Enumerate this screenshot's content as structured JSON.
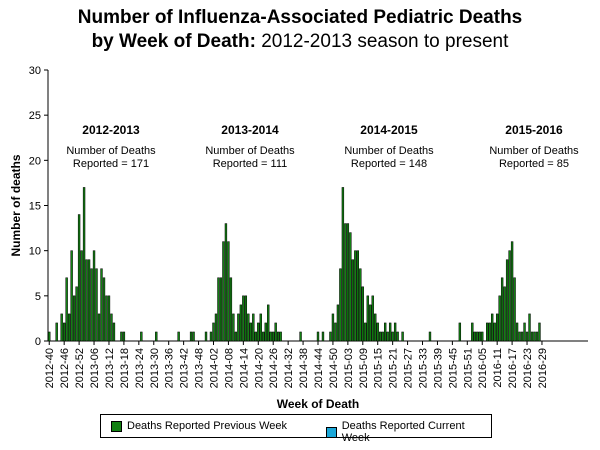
{
  "title": {
    "line1": "Number of Influenza-Associated Pediatric Deaths",
    "line2_bold": "by Week of Death:",
    "line2_rest": " 2012-2013 season to present"
  },
  "legend": {
    "previous": "Deaths Reported Previous Week",
    "current": "Deaths Reported Current Week"
  },
  "colors": {
    "previous": "#128012",
    "current": "#1aa7d8",
    "axis": "#000000"
  },
  "chart_data": {
    "type": "bar",
    "xlabel": "Week of Death",
    "ylabel": "Number of deaths",
    "ylim": [
      0,
      30
    ],
    "yticks": [
      0,
      5,
      10,
      15,
      20,
      25,
      30
    ],
    "x_tick_labels": [
      "2012-40",
      "2012-46",
      "2012-52",
      "2013-06",
      "2013-12",
      "2013-18",
      "2013-24",
      "2013-30",
      "2013-36",
      "2013-42",
      "2013-48",
      "2014-02",
      "2014-08",
      "2014-14",
      "2014-20",
      "2014-26",
      "2014-32",
      "2014-38",
      "2014-44",
      "2014-50",
      "2015-03",
      "2015-09",
      "2015-15",
      "2015-21",
      "2015-27",
      "2015-33",
      "2015-39",
      "2015-45",
      "2015-51",
      "2016-05",
      "2016-11",
      "2016-17",
      "2016-23",
      "2016-29"
    ],
    "grid": false,
    "legend_position": "bottom",
    "seasons": [
      {
        "name": "2012-2013",
        "line1": "Number of Deaths",
        "line2": "Reported = 171"
      },
      {
        "name": "2013-2014",
        "line1": "Number of Deaths",
        "line2": "Reported = 111"
      },
      {
        "name": "2014-2015",
        "line1": "Number of Deaths",
        "line2": "Reported = 148"
      },
      {
        "name": "2015-2016",
        "line1": "Number of Deaths",
        "line2": "Reported = 85"
      }
    ],
    "series": [
      {
        "name": "Deaths Reported Previous Week",
        "values": [
          1,
          0,
          0,
          2,
          0,
          3,
          2,
          7,
          3,
          10,
          5,
          6,
          14,
          10,
          17,
          9,
          9,
          8,
          10,
          8,
          3,
          8,
          7,
          5,
          5,
          3,
          2,
          0,
          0,
          1,
          1,
          0,
          0,
          0,
          0,
          0,
          0,
          1,
          0,
          0,
          0,
          0,
          0,
          1,
          0,
          0,
          0,
          0,
          0,
          0,
          0,
          0,
          1,
          0,
          0,
          0,
          0,
          1,
          1,
          0,
          0,
          0,
          0,
          1,
          0,
          1,
          2,
          3,
          7,
          7,
          11,
          13,
          11,
          7,
          3,
          1,
          3,
          4,
          5,
          5,
          3,
          2,
          3,
          1,
          2,
          3,
          1,
          2,
          4,
          1,
          1,
          2,
          1,
          1,
          0,
          0,
          0,
          0,
          0,
          0,
          0,
          1,
          0,
          0,
          0,
          0,
          0,
          0,
          1,
          0,
          1,
          0,
          0,
          1,
          3,
          2,
          4,
          8,
          17,
          13,
          13,
          12,
          9,
          10,
          10,
          8,
          6,
          2,
          5,
          4,
          5,
          3,
          2,
          1,
          1,
          2,
          1,
          2,
          1,
          2,
          1,
          0,
          1,
          0,
          0,
          0,
          0,
          0,
          0,
          0,
          0,
          0,
          0,
          1,
          0,
          0,
          0,
          0,
          0,
          0,
          0,
          0,
          0,
          0,
          0,
          2,
          0,
          0,
          0,
          0,
          2,
          1,
          1,
          1,
          1,
          0,
          2,
          2,
          3,
          2,
          3,
          5,
          7,
          6,
          9,
          10,
          11,
          7,
          2,
          1,
          1,
          2,
          1,
          3,
          1,
          1,
          1,
          2,
          0,
          0,
          0,
          0,
          0,
          0,
          0,
          0,
          0,
          0,
          0,
          0,
          0,
          0,
          0,
          0,
          0,
          0,
          0
        ]
      },
      {
        "name": "Deaths Reported Current Week",
        "values": [
          0,
          0,
          0,
          0,
          0,
          0,
          0,
          0,
          0,
          0,
          0,
          0,
          0,
          0,
          0,
          0,
          0,
          0,
          0,
          0,
          0,
          0,
          0,
          0,
          0,
          0,
          0,
          0,
          0,
          0,
          0,
          0,
          0,
          0,
          0,
          0,
          0,
          0,
          0,
          0,
          0,
          0,
          0,
          0,
          0,
          0,
          0,
          0,
          0,
          0,
          0,
          0,
          0,
          0,
          0,
          0,
          0,
          0,
          0,
          0,
          0,
          0,
          0,
          0,
          0,
          0,
          0,
          0,
          0,
          0,
          0,
          0,
          0,
          0,
          0,
          0,
          0,
          0,
          0,
          0,
          0,
          0,
          0,
          0,
          0,
          0,
          0,
          0,
          0,
          0,
          0,
          0,
          0,
          0,
          0,
          0,
          0,
          0,
          0,
          0,
          0,
          0,
          0,
          0,
          0,
          0,
          0,
          0,
          0,
          0,
          0,
          0,
          0,
          0,
          0,
          0,
          0,
          0,
          0,
          0,
          0,
          0,
          0,
          0,
          0,
          0,
          0,
          0,
          0,
          0,
          0,
          0,
          0,
          0,
          0,
          0,
          0,
          0,
          0,
          0,
          0,
          0,
          0,
          0,
          0,
          0,
          0,
          0,
          0,
          0,
          0,
          0,
          0,
          0,
          0,
          0,
          0,
          0,
          0,
          0,
          0,
          0,
          0,
          0,
          0,
          0,
          0,
          0,
          0,
          0,
          0,
          0,
          0,
          0,
          0,
          0,
          0,
          0,
          0,
          0,
          0,
          0,
          0,
          0,
          0,
          0,
          0,
          0,
          0,
          0,
          0,
          0,
          0,
          0,
          0,
          0,
          0,
          0,
          0,
          0,
          0,
          0,
          0,
          0,
          0,
          0,
          0,
          0,
          0,
          0,
          0,
          0,
          0,
          0,
          0,
          0,
          0,
          0,
          0,
          0,
          0,
          0
        ]
      }
    ]
  }
}
